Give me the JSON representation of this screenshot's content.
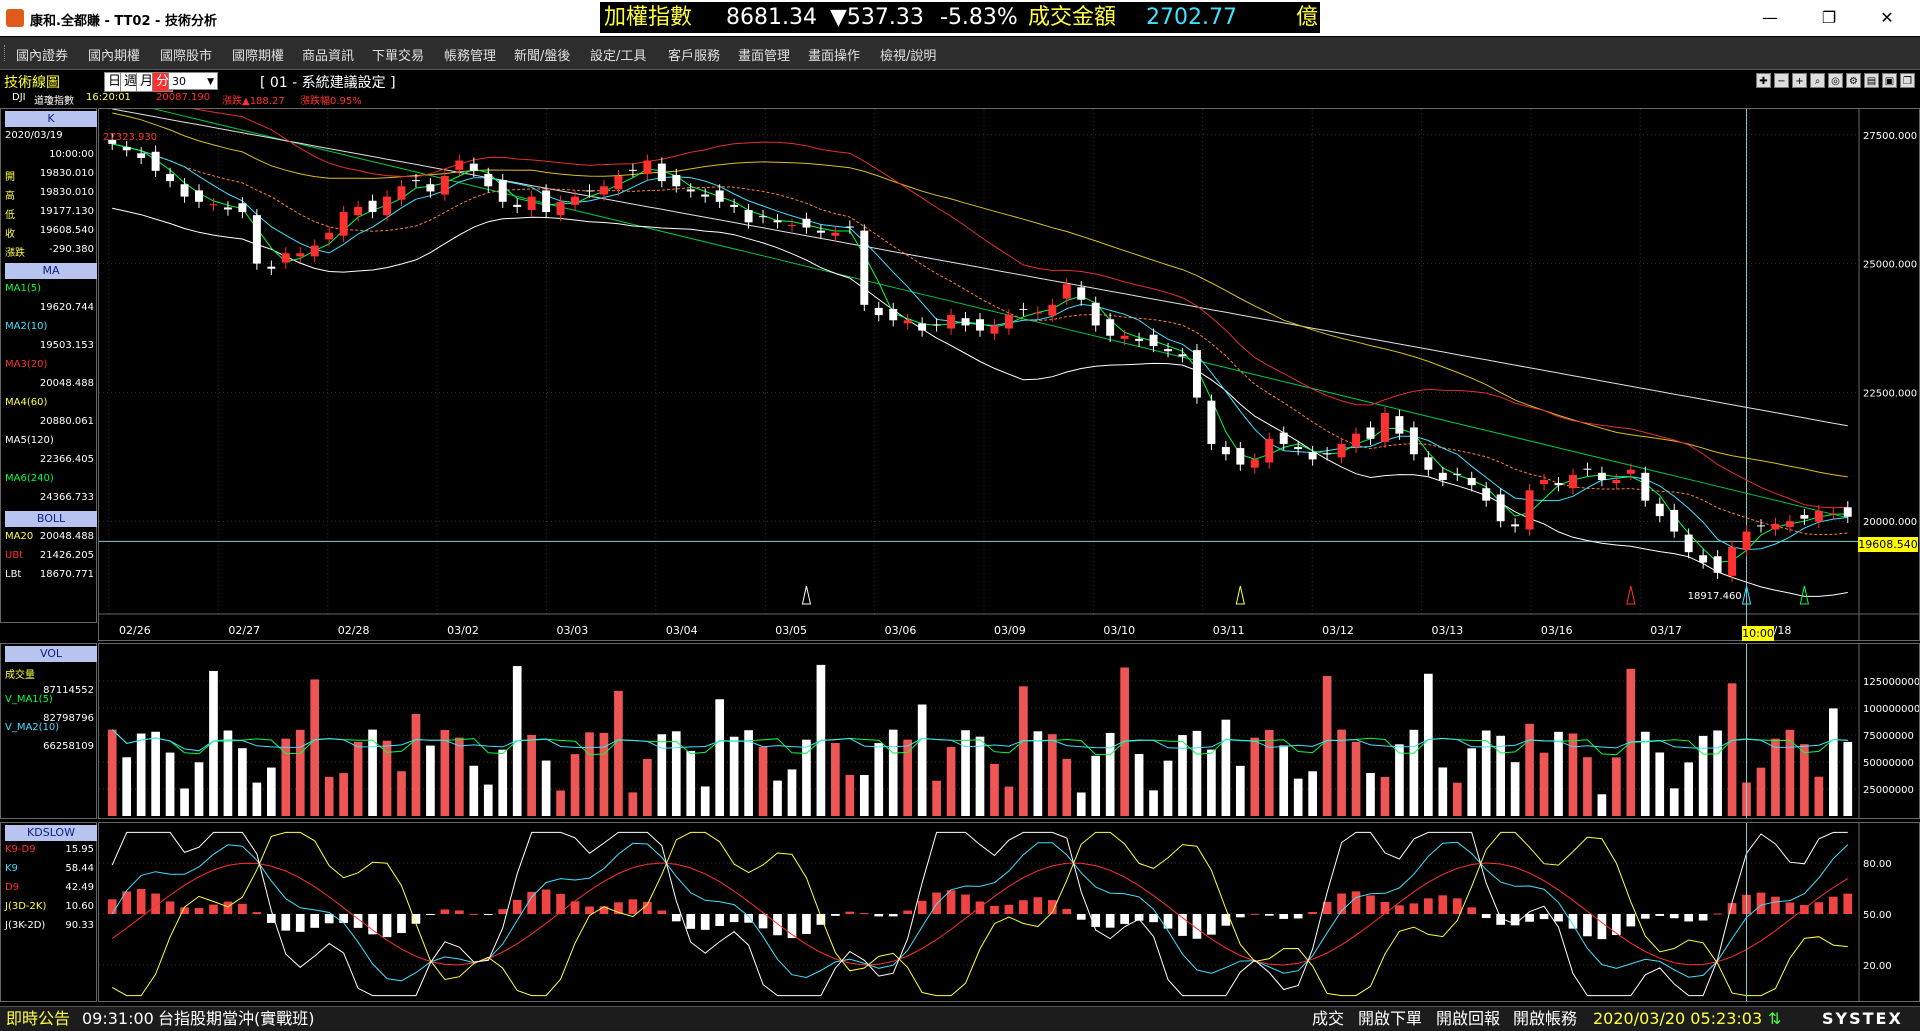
{
  "window": {
    "title": "康和.全都賺 - TT02 - 技術分析",
    "ticker": {
      "index_name": "加權指數",
      "index_value": "8681.34",
      "change": "▼537.33",
      "change_pct": "-5.83%",
      "turnover_label": "成交金額",
      "turnover_value": "2702.77",
      "turnover_unit": "億"
    },
    "controls": {
      "minimize": "—",
      "restore": "❐",
      "close": "✕"
    }
  },
  "menu": [
    "國內證券",
    "國內期權",
    "國際股市",
    "國際期權",
    "商品資訊",
    "下單交易",
    "帳務管理",
    "新聞/盤後",
    "設定/工具",
    "客戶服務",
    "畫面管理",
    "畫面操作",
    "檢視/說明"
  ],
  "toolbar": {
    "title": "技術線圖",
    "periods": [
      "日",
      "週",
      "月",
      "分"
    ],
    "active_period": "分",
    "interval": "30",
    "preset": "[ 01 - 系統建議設定 ]",
    "symbol": "DJI",
    "symbol_name": "道瓊指數",
    "time": "16:20:01",
    "last": "20087.190",
    "change": "漲跌▲188.27",
    "change_pct": "漲跌幅0.95%"
  },
  "info": {
    "k_title": "K",
    "date": "2020/03/19",
    "time": "10:00:00",
    "rows": [
      {
        "label": "開",
        "value": "19830.010"
      },
      {
        "label": "高",
        "value": "19830.010"
      },
      {
        "label": "低",
        "value": "19177.130"
      },
      {
        "label": "收",
        "value": "19608.540"
      },
      {
        "label": "漲跌",
        "value": "-290.380"
      }
    ],
    "ma_title": "MA",
    "ma": [
      {
        "label": "MA1(5)",
        "value": "19620.744",
        "color": "#00ff40"
      },
      {
        "label": "MA2(10)",
        "value": "19503.153",
        "color": "#40e0ff"
      },
      {
        "label": "MA3(20)",
        "value": "20048.488",
        "color": "#ff3030"
      },
      {
        "label": "MA4(60)",
        "value": "20880.061",
        "color": "#ffff40"
      },
      {
        "label": "MA5(120)",
        "value": "22366.405",
        "color": "#ffffff"
      },
      {
        "label": "MA6(240)",
        "value": "24366.733",
        "color": "#00ff40"
      }
    ],
    "boll_title": "BOLL",
    "boll": [
      {
        "label": "MA20",
        "value": "20048.488",
        "color": "#ffff40"
      },
      {
        "label": "UBt",
        "value": "21426.205",
        "color": "#ff3030"
      },
      {
        "label": "LBt",
        "value": "18670.771",
        "color": "#ffffff"
      }
    ],
    "vol_title": "VOL",
    "vol": [
      {
        "label": "成交量",
        "value": "87114552",
        "color": "#ffff40"
      },
      {
        "label": "V_MA1(5)",
        "value": "82798796",
        "color": "#00ff40"
      },
      {
        "label": "V_MA2(10)",
        "value": "66258109",
        "color": "#40e0ff"
      }
    ],
    "kd_title": "KDSLOW",
    "kd": [
      {
        "label": "K9-D9",
        "value": "15.95",
        "color": "#ff3030"
      },
      {
        "label": "K9",
        "value": "58.44",
        "color": "#40e0ff"
      },
      {
        "label": "D9",
        "value": "42.49",
        "color": "#ff3030"
      },
      {
        "label": "J(3D-2K)",
        "value": "10.60",
        "color": "#ffff40"
      },
      {
        "label": "J(3K-2D)",
        "value": "90.33",
        "color": "#ffffff"
      }
    ]
  },
  "chart_data": [
    {
      "type": "candlestick",
      "name": "K",
      "x_labels": [
        "02/26",
        "02/27",
        "02/28",
        "03/02",
        "03/03",
        "03/04",
        "03/05",
        "03/06",
        "03/09",
        "03/10",
        "03/11",
        "03/12",
        "03/13",
        "03/16",
        "03/17",
        "03/18",
        "10:00"
      ],
      "y_ticks": [
        27500,
        25000,
        22500,
        20000
      ],
      "y_tick_labels": [
        "27500.000",
        "25000.000",
        "22500.000",
        "20000.000"
      ],
      "ylim": [
        18200,
        28000
      ],
      "current_price": "19608.540",
      "annotations": {
        "max": "27323.930",
        "min": "18917.460"
      },
      "close": [
        27323,
        27200,
        27050,
        26800,
        26600,
        26300,
        26200,
        26150,
        26050,
        26000,
        25000,
        24900,
        25200,
        25200,
        25350,
        25600,
        26000,
        26100,
        26000,
        26300,
        26500,
        26600,
        26400,
        26700,
        27000,
        26800,
        26500,
        26200,
        26100,
        26300,
        26000,
        26200,
        26300,
        26400,
        26500,
        26700,
        26800,
        27000,
        26600,
        26500,
        26400,
        26300,
        26200,
        26100,
        25800,
        25900,
        25800,
        25750,
        25700,
        25600,
        25600,
        25700,
        24200,
        24000,
        23900,
        23900,
        23700,
        23800,
        24000,
        23800,
        23700,
        23800,
        24000,
        24100,
        24050,
        24200,
        24600,
        24300,
        23800,
        23600,
        23600,
        23500,
        23400,
        23300,
        23200,
        22400,
        21500,
        21300,
        21100,
        21200,
        21600,
        21500,
        21400,
        21200,
        21300,
        21500,
        21700,
        21600,
        22100,
        21700,
        21300,
        21000,
        20800,
        20900,
        20700,
        20400,
        20000,
        19900,
        20600,
        20800,
        20700,
        20900,
        21000,
        20800,
        20800,
        21000,
        20400,
        20100,
        19800,
        19400,
        19200,
        19000,
        19500,
        19800,
        19900,
        19950,
        20000,
        20050,
        20200,
        20150,
        20087
      ]
    },
    {
      "type": "bar",
      "name": "VOL",
      "y_ticks": [
        125000000,
        100000000,
        75000000,
        50000000,
        25000000
      ],
      "y_tick_labels": [
        "125000000",
        "100000000",
        "75000000",
        "50000000",
        "25000000"
      ],
      "ylim": [
        0,
        150000000
      ]
    },
    {
      "type": "line",
      "name": "KDSLOW",
      "y_ticks": [
        80,
        50,
        20
      ],
      "y_tick_labels": [
        "80.00",
        "50.00",
        "20.00"
      ],
      "ylim": [
        0,
        100
      ]
    }
  ],
  "status": {
    "label": "即時公告",
    "time": "09:31:00",
    "message": "台指股期當沖(實戰班)",
    "buttons": [
      "成交",
      "開啟下單",
      "開啟回報",
      "開啟帳務"
    ],
    "datetime": "2020/03/20 05:23:03",
    "brand": "SYSTEX"
  }
}
